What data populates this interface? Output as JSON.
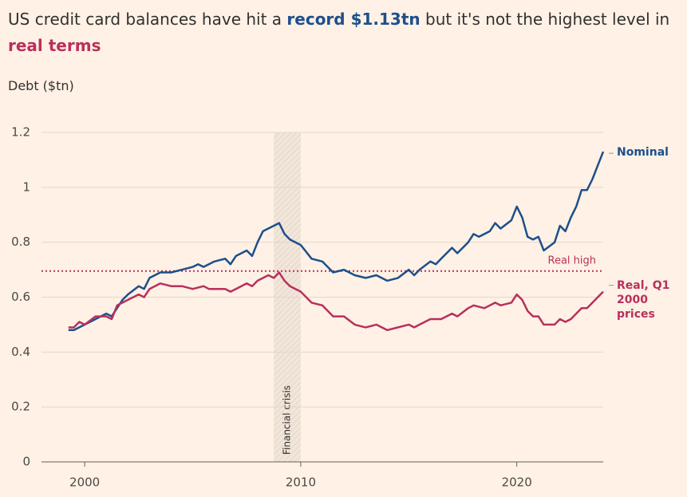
{
  "chart_data": {
    "type": "line",
    "title": [
      {
        "text": "US credit card balances have hit a "
      },
      {
        "text": "record $1.13tn",
        "color": "#1d4f8b"
      },
      {
        "text": " but it's not the highest level in "
      },
      {
        "text": "real terms",
        "color": "#b8305c"
      }
    ],
    "y_label": "Debt ($tn)",
    "xlim": [
      1998,
      2024
    ],
    "xticks": [
      2000,
      2010,
      2020
    ],
    "ylim": [
      0,
      1.2
    ],
    "yticks": [
      0,
      0.2,
      0.4,
      0.6,
      0.8,
      1,
      1.2
    ],
    "grid": true,
    "series": [
      {
        "name": "Nominal",
        "color": "#1d4f8b",
        "x": [
          1999.25,
          1999.5,
          2000,
          2000.5,
          2001,
          2001.25,
          2001.75,
          2002,
          2002.5,
          2002.75,
          2003,
          2003.5,
          2004,
          2004.5,
          2005,
          2005.25,
          2005.5,
          2006,
          2006.5,
          2006.75,
          2007,
          2007.5,
          2007.75,
          2008,
          2008.25,
          2008.75,
          2009,
          2009.25,
          2009.5,
          2010,
          2010.5,
          2011,
          2011.5,
          2012,
          2012.5,
          2013,
          2013.5,
          2014,
          2014.5,
          2015,
          2015.25,
          2015.5,
          2016,
          2016.25,
          2016.5,
          2017,
          2017.25,
          2017.75,
          2018,
          2018.25,
          2018.75,
          2019,
          2019.25,
          2019.75,
          2020,
          2020.25,
          2020.5,
          2020.75,
          2021,
          2021.25,
          2021.75,
          2022,
          2022.25,
          2022.5,
          2022.75,
          2023,
          2023.25,
          2023.5,
          2023.75,
          2024
        ],
        "values": [
          0.48,
          0.48,
          0.5,
          0.52,
          0.54,
          0.53,
          0.59,
          0.61,
          0.64,
          0.63,
          0.67,
          0.69,
          0.69,
          0.7,
          0.71,
          0.72,
          0.71,
          0.73,
          0.74,
          0.72,
          0.75,
          0.77,
          0.75,
          0.8,
          0.84,
          0.86,
          0.87,
          0.83,
          0.81,
          0.79,
          0.74,
          0.73,
          0.69,
          0.7,
          0.68,
          0.67,
          0.68,
          0.66,
          0.67,
          0.7,
          0.68,
          0.7,
          0.73,
          0.72,
          0.74,
          0.78,
          0.76,
          0.8,
          0.83,
          0.82,
          0.84,
          0.87,
          0.85,
          0.88,
          0.93,
          0.89,
          0.82,
          0.81,
          0.82,
          0.77,
          0.8,
          0.86,
          0.84,
          0.89,
          0.93,
          0.99,
          0.99,
          1.03,
          1.08,
          1.13
        ]
      },
      {
        "name": "Real, Q1 2000 prices",
        "color": "#b8305c",
        "x": [
          1999.25,
          1999.5,
          1999.75,
          2000,
          2000.5,
          2001,
          2001.25,
          2001.5,
          2002,
          2002.5,
          2002.75,
          2003,
          2003.5,
          2004,
          2004.5,
          2005,
          2005.5,
          2005.75,
          2006.5,
          2006.75,
          2007,
          2007.5,
          2007.75,
          2008,
          2008.5,
          2008.75,
          2009,
          2009.25,
          2009.5,
          2010,
          2010.5,
          2011,
          2011.5,
          2012,
          2012.5,
          2013,
          2013.5,
          2014,
          2014.5,
          2015,
          2015.25,
          2015.5,
          2016,
          2016.5,
          2017,
          2017.25,
          2017.75,
          2018,
          2018.5,
          2019,
          2019.25,
          2019.75,
          2020,
          2020.25,
          2020.5,
          2020.75,
          2021,
          2021.25,
          2021.75,
          2022,
          2022.25,
          2022.5,
          2022.75,
          2023,
          2023.25,
          2023.5,
          2023.75,
          2024
        ],
        "values": [
          0.49,
          0.49,
          0.51,
          0.5,
          0.53,
          0.53,
          0.52,
          0.57,
          0.59,
          0.61,
          0.6,
          0.63,
          0.65,
          0.64,
          0.64,
          0.63,
          0.64,
          0.63,
          0.63,
          0.62,
          0.63,
          0.65,
          0.64,
          0.66,
          0.68,
          0.67,
          0.69,
          0.66,
          0.64,
          0.62,
          0.58,
          0.57,
          0.53,
          0.53,
          0.5,
          0.49,
          0.5,
          0.48,
          0.49,
          0.5,
          0.49,
          0.5,
          0.52,
          0.52,
          0.54,
          0.53,
          0.56,
          0.57,
          0.56,
          0.58,
          0.57,
          0.58,
          0.61,
          0.59,
          0.55,
          0.53,
          0.53,
          0.5,
          0.5,
          0.52,
          0.51,
          0.52,
          0.54,
          0.56,
          0.56,
          0.58,
          0.6,
          0.62
        ]
      }
    ],
    "shaded_region": {
      "label": "Financial crisis",
      "x": [
        2008.75,
        2010
      ]
    },
    "reference_line": {
      "label": "Real high",
      "y": 0.695,
      "color": "#b8305c"
    }
  }
}
